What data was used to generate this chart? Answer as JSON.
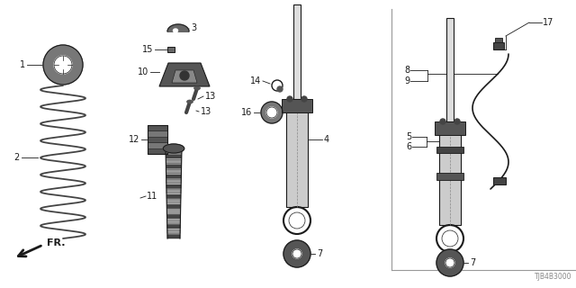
{
  "bg_color": "#ffffff",
  "diagram_code": "TJB4B3000",
  "dark": "#1a1a1a",
  "gray": "#666666",
  "lgray": "#aaaaaa",
  "mgray": "#888888"
}
